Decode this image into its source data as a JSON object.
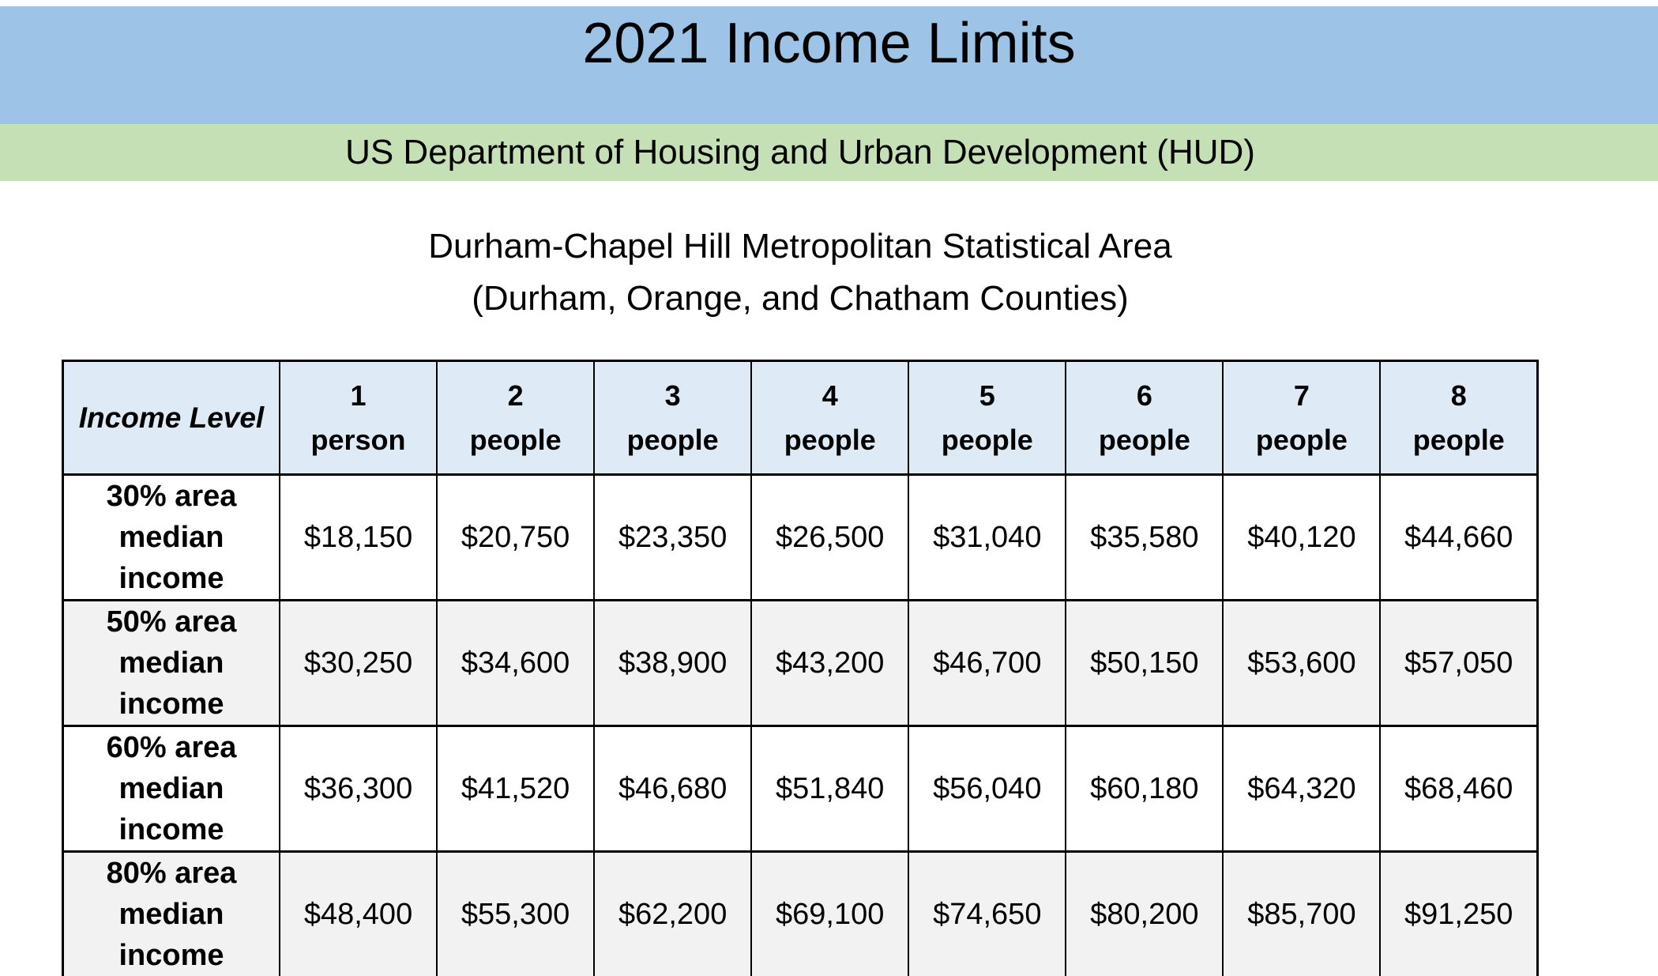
{
  "page": {
    "title": "2021 Income Limits",
    "org_banner": "US Department of Housing and Urban Development (HUD)",
    "subtitle_line1": "Durham-Chapel Hill Metropolitan Statistical Area",
    "subtitle_line2": "(Durham, Orange, and Chatham Counties)"
  },
  "colors": {
    "title_banner_blue": "#9DC3E6",
    "org_banner_green": "#C5E0B4",
    "table_header_blue": "#DEEBF7",
    "row_alt_gray": "#F2F2F2",
    "border_black": "#000000"
  },
  "table": {
    "corner_header": "Income Level",
    "col_headers": [
      {
        "num": "1",
        "unit": "person"
      },
      {
        "num": "2",
        "unit": "people"
      },
      {
        "num": "3",
        "unit": "people"
      },
      {
        "num": "4",
        "unit": "people"
      },
      {
        "num": "5",
        "unit": "people"
      },
      {
        "num": "6",
        "unit": "people"
      },
      {
        "num": "7",
        "unit": "people"
      },
      {
        "num": "8",
        "unit": "people"
      }
    ],
    "rows": [
      {
        "label_lines": [
          "30% area",
          "median",
          "income"
        ],
        "values": [
          "$18,150",
          "$20,750",
          "$23,350",
          "$26,500",
          "$31,040",
          "$35,580",
          "$40,120",
          "$44,660"
        ]
      },
      {
        "label_lines": [
          "50% area",
          "median",
          "income"
        ],
        "values": [
          "$30,250",
          "$34,600",
          "$38,900",
          "$43,200",
          "$46,700",
          "$50,150",
          "$53,600",
          "$57,050"
        ]
      },
      {
        "label_lines": [
          "60% area",
          "median",
          "income"
        ],
        "values": [
          "$36,300",
          "$41,520",
          "$46,680",
          "$51,840",
          "$56,040",
          "$60,180",
          "$64,320",
          "$68,460"
        ]
      },
      {
        "label_lines": [
          "80% area",
          "median",
          "income"
        ],
        "values": [
          "$48,400",
          "$55,300",
          "$62,200",
          "$69,100",
          "$74,650",
          "$80,200",
          "$85,700",
          "$91,250"
        ]
      }
    ]
  },
  "chart_data": {
    "type": "table",
    "title": "2021 Income Limits",
    "subtitle": "US Department of Housing and Urban Development (HUD) — Durham-Chapel Hill Metropolitan Statistical Area (Durham, Orange, and Chatham Counties)",
    "col_labels": [
      "1 person",
      "2 people",
      "3 people",
      "4 people",
      "5 people",
      "6 people",
      "7 people",
      "8 people"
    ],
    "row_labels": [
      "30% area median income",
      "50% area median income",
      "60% area median income",
      "80% area median income"
    ],
    "values_usd": [
      [
        18150,
        20750,
        23350,
        26500,
        31040,
        35580,
        40120,
        44660
      ],
      [
        30250,
        34600,
        38900,
        43200,
        46700,
        50150,
        53600,
        57050
      ],
      [
        36300,
        41520,
        46680,
        51840,
        56040,
        60180,
        64320,
        68460
      ],
      [
        48400,
        55300,
        62200,
        69100,
        74650,
        80200,
        85700,
        91250
      ]
    ]
  }
}
